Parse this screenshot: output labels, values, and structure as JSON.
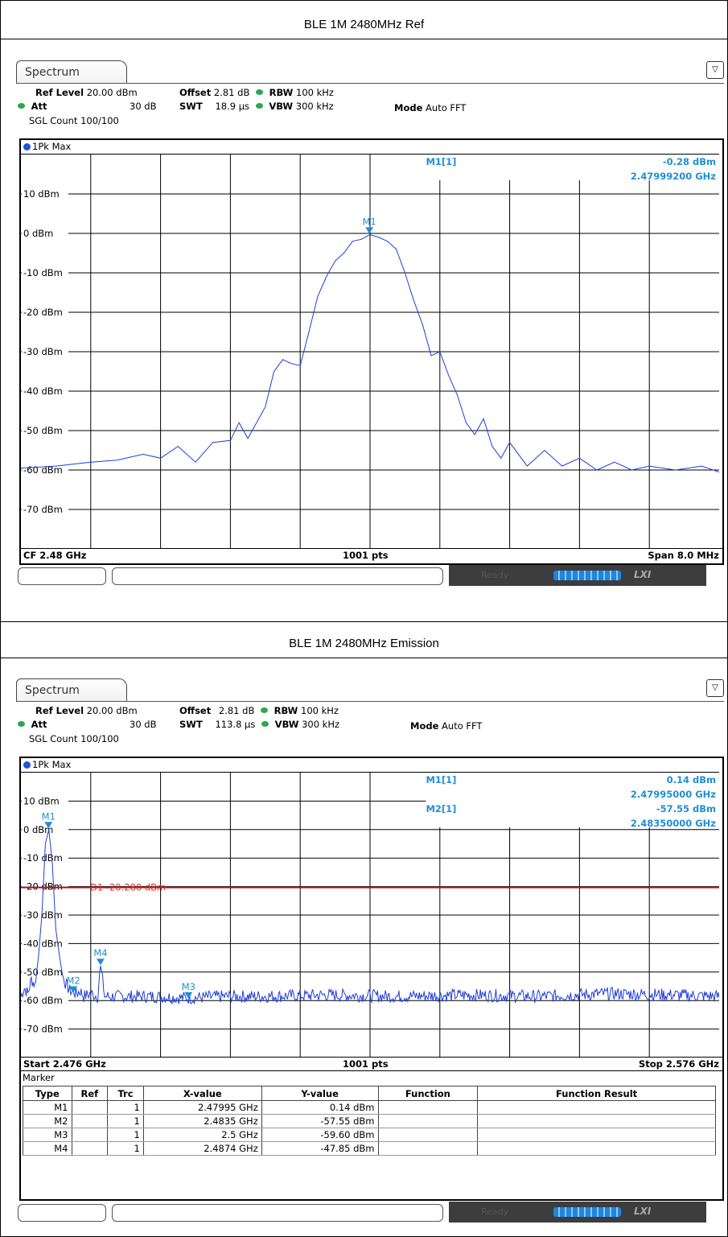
{
  "sections": [
    {
      "title": "BLE 1M 2480MHz Ref",
      "tab_label": "Spectrum",
      "settings": {
        "ref_level_label": "Ref Level",
        "ref_level_value": "20.00 dBm",
        "offset_label": "Offset",
        "offset_value": "2.81 dB",
        "rbw_label": "RBW",
        "rbw_value": "100 kHz",
        "att_label": "Att",
        "att_value": "30 dB",
        "swt_label": "SWT",
        "swt_value": "18.9 µs",
        "vbw_label": "VBW",
        "vbw_value": "300 kHz",
        "mode_label": "Mode",
        "mode_value": "Auto FFT",
        "count": "SGL Count 100/100"
      },
      "trace_label": "1Pk Max",
      "marker_readouts": [
        {
          "name": "M1[1]",
          "level": "-0.28 dBm",
          "freq": "2.47999200 GHz"
        }
      ],
      "status": {
        "left": "CF 2.48 GHz",
        "center": "1001 pts",
        "right": "Span 8.0 MHz"
      },
      "ready_text": "Ready",
      "lxi": "LXI"
    },
    {
      "title": "BLE 1M 2480MHz Emission",
      "tab_label": "Spectrum",
      "settings": {
        "ref_level_label": "Ref Level",
        "ref_level_value": "20.00 dBm",
        "offset_label": "Offset",
        "offset_value": "2.81 dB",
        "rbw_label": "RBW",
        "rbw_value": "100 kHz",
        "att_label": "Att",
        "att_value": "30 dB",
        "swt_label": "SWT",
        "swt_value": "113.8 µs",
        "vbw_label": "VBW",
        "vbw_value": "300 kHz",
        "mode_label": "Mode",
        "mode_value": "Auto FFT",
        "count": "SGL Count 100/100"
      },
      "trace_label": "1Pk Max",
      "marker_readouts": [
        {
          "name": "M1[1]",
          "level": "0.14 dBm",
          "freq": "2.47995000 GHz"
        },
        {
          "name": "M2[1]",
          "level": "-57.55 dBm",
          "freq": "2.48350000 GHz"
        }
      ],
      "display_line": "D1 -20.280 dBm",
      "status": {
        "left": "Start 2.476 GHz",
        "center": "1001 pts",
        "right": "Stop 2.576 GHz"
      },
      "marker_table": {
        "title": "Marker",
        "headers": [
          "Type",
          "Ref",
          "Trc",
          "X-value",
          "Y-value",
          "Function",
          "Function Result"
        ],
        "rows": [
          [
            "M1",
            "",
            "1",
            "2.47995 GHz",
            "0.14 dBm",
            "",
            ""
          ],
          [
            "M2",
            "",
            "1",
            "2.4835 GHz",
            "-57.55 dBm",
            "",
            ""
          ],
          [
            "M3",
            "",
            "1",
            "2.5 GHz",
            "-59.60 dBm",
            "",
            ""
          ],
          [
            "M4",
            "",
            "1",
            "2.4874 GHz",
            "-47.85 dBm",
            "",
            ""
          ]
        ]
      },
      "ready_text": "Ready",
      "lxi": "LXI"
    }
  ],
  "chart_data": [
    {
      "type": "line",
      "title": "",
      "xlabel": "",
      "ylabel": "",
      "xunit": "GHz",
      "xlim": [
        2.476,
        2.484
      ],
      "ylim": [
        -80,
        20
      ],
      "y_tick_labels": [
        "10 dBm",
        "0 dBm",
        "-10 dBm",
        "-20 dBm",
        "-30 dBm",
        "-40 dBm",
        "-50 dBm",
        "-60 dBm",
        "-70 dBm"
      ],
      "y_tick_values": [
        10,
        0,
        -10,
        -20,
        -30,
        -40,
        -50,
        -60,
        -70
      ],
      "grid": true,
      "series": [
        {
          "name": "1Pk Max",
          "color": "#1f3fd6",
          "x": [
            2.476,
            2.4764,
            2.4768,
            2.4771,
            2.4774,
            2.4776,
            2.4778,
            2.478,
            2.4782,
            2.4784,
            2.4785,
            2.4786,
            2.4787,
            2.4788,
            2.4789,
            2.479,
            2.4791,
            2.4792,
            2.4793,
            2.4794,
            2.4795,
            2.4796,
            2.4797,
            2.4798,
            2.4799,
            2.48,
            2.4801,
            2.4802,
            2.4803,
            2.4804,
            2.4805,
            2.4806,
            2.4807,
            2.4808,
            2.4809,
            2.481,
            2.4811,
            2.4812,
            2.4813,
            2.4814,
            2.4815,
            2.4816,
            2.4818,
            2.482,
            2.4822,
            2.4824,
            2.4826,
            2.4828,
            2.483,
            2.4832,
            2.4835,
            2.4838,
            2.484
          ],
          "y": [
            -59.5,
            -59,
            -58,
            -57.5,
            -56,
            -57,
            -54,
            -58,
            -53,
            -52.5,
            -48,
            -52,
            -48,
            -44,
            -35,
            -32,
            -33,
            -33.5,
            -25,
            -16,
            -11,
            -7,
            -5,
            -2,
            -1.5,
            -0.3,
            -1,
            -2,
            -4,
            -10,
            -17,
            -23,
            -31,
            -30,
            -36,
            -41,
            -48,
            -51,
            -47,
            -54,
            -57,
            -53,
            -59,
            -55,
            -59,
            -57,
            -60,
            -58,
            -60,
            -59,
            -60,
            -59,
            -60.5
          ]
        }
      ],
      "markers": [
        {
          "label": "M1",
          "x": 2.479992,
          "y": -0.28
        }
      ]
    },
    {
      "type": "line",
      "title": "",
      "xlabel": "",
      "ylabel": "",
      "xunit": "GHz",
      "xlim": [
        2.476,
        2.576
      ],
      "ylim": [
        -80,
        20
      ],
      "y_tick_labels": [
        "10 dBm",
        "0 dBm",
        "-10 dBm",
        "-20 dBm",
        "-30 dBm",
        "-40 dBm",
        "-50 dBm",
        "-60 dBm",
        "-70 dBm"
      ],
      "y_tick_values": [
        10,
        0,
        -10,
        -20,
        -30,
        -40,
        -50,
        -60,
        -70
      ],
      "grid": true,
      "display_line_dbm": -20.28,
      "series": [
        {
          "name": "1Pk Max",
          "color": "#1f3fd6",
          "x": [
            2.476,
            2.4765,
            2.477,
            2.4775,
            2.478,
            2.4785,
            2.479,
            2.4795,
            2.48,
            2.4805,
            2.481,
            2.4815,
            2.482,
            2.4825,
            2.483,
            2.4835,
            2.484,
            2.4845,
            2.485,
            2.486,
            2.487,
            2.4874,
            2.488,
            2.49,
            2.495,
            2.5,
            2.505,
            2.51,
            2.52,
            2.53,
            2.54,
            2.55,
            2.56,
            2.57,
            2.576
          ],
          "y": [
            -59,
            -56,
            -58,
            -53,
            -55,
            -45,
            -30,
            -5,
            0.1,
            -12,
            -35,
            -44,
            -52,
            -55,
            -57,
            -57.5,
            -58,
            -57,
            -59,
            -58,
            -59,
            -47.85,
            -59,
            -59,
            -59,
            -59.6,
            -59,
            -59,
            -58.5,
            -59,
            -58.5,
            -59,
            -58,
            -58.5,
            -59
          ]
        }
      ],
      "markers": [
        {
          "label": "M1",
          "x": 2.47995,
          "y": 0.14
        },
        {
          "label": "M2",
          "x": 2.4835,
          "y": -57.55
        },
        {
          "label": "M3",
          "x": 2.5,
          "y": -59.6
        },
        {
          "label": "M4",
          "x": 2.4874,
          "y": -47.85
        }
      ]
    }
  ]
}
